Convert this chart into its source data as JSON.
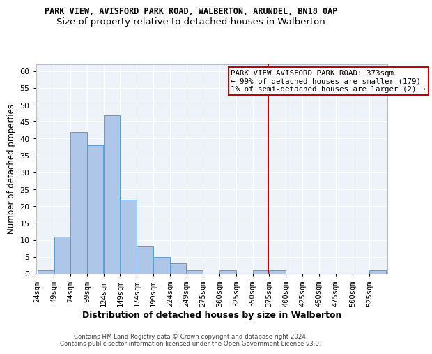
{
  "title": "PARK VIEW, AVISFORD PARK ROAD, WALBERTON, ARUNDEL, BN18 0AP",
  "subtitle": "Size of property relative to detached houses in Walberton",
  "xlabel": "Distribution of detached houses by size in Walberton",
  "ylabel": "Number of detached properties",
  "bin_edges": [
    24,
    49,
    74,
    99,
    124,
    149,
    174,
    199,
    224,
    249,
    274,
    299,
    324,
    349,
    374,
    399,
    424,
    449,
    474,
    500,
    525,
    550
  ],
  "bin_labels": [
    "24sqm",
    "49sqm",
    "74sqm",
    "99sqm",
    "124sqm",
    "149sqm",
    "174sqm",
    "199sqm",
    "224sqm",
    "249sqm",
    "275sqm",
    "300sqm",
    "325sqm",
    "350sqm",
    "375sqm",
    "400sqm",
    "425sqm",
    "450sqm",
    "475sqm",
    "500sqm",
    "525sqm"
  ],
  "counts": [
    1,
    11,
    42,
    38,
    47,
    22,
    8,
    5,
    3,
    1,
    0,
    1,
    0,
    1,
    1,
    0,
    0,
    0,
    0,
    0,
    1
  ],
  "bar_color": "#aec6e8",
  "bar_edge_color": "#5a9fd4",
  "vline_x": 373,
  "vline_color": "#cc0000",
  "annotation_line1": "PARK VIEW AVISFORD PARK ROAD: 373sqm",
  "annotation_line2": "← 99% of detached houses are smaller (179)",
  "annotation_line3": "1% of semi-detached houses are larger (2) →",
  "annotation_box_color": "#ffffff",
  "annotation_edge_color": "#cc0000",
  "ylim": [
    0,
    62
  ],
  "yticks": [
    0,
    5,
    10,
    15,
    20,
    25,
    30,
    35,
    40,
    45,
    50,
    55,
    60
  ],
  "bg_color": "#eef2f9",
  "grid_color": "#ffffff",
  "footer": "Contains HM Land Registry data © Crown copyright and database right 2024.\nContains public sector information licensed under the Open Government Licence v3.0.",
  "title_fontsize": 8.5,
  "subtitle_fontsize": 9.5,
  "xlabel_fontsize": 9,
  "ylabel_fontsize": 8.5,
  "ann_fontsize": 7.8
}
